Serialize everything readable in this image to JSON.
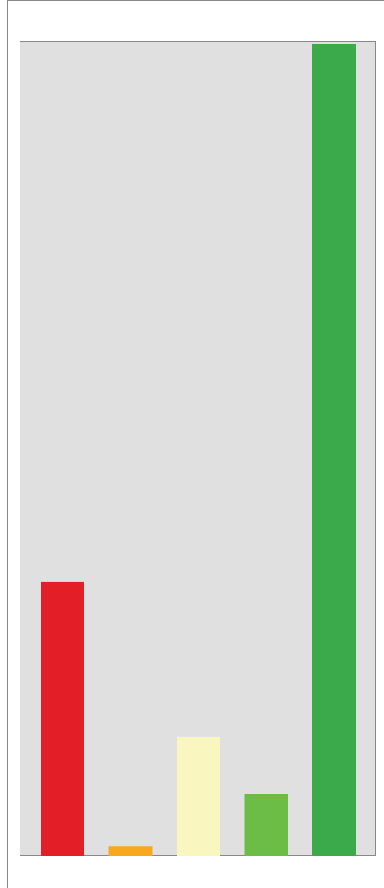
{
  "chart_data": {
    "type": "bar",
    "categories": [
      null,
      null,
      null,
      null,
      null
    ],
    "values": [
      33.6,
      1.1,
      14.6,
      7.6,
      99.6
    ],
    "colors": [
      "#e31e26",
      "#f8a81d",
      "#faf6c0",
      "#6cbd45",
      "#3aaa4a"
    ],
    "ylim": [
      0,
      100
    ]
  }
}
